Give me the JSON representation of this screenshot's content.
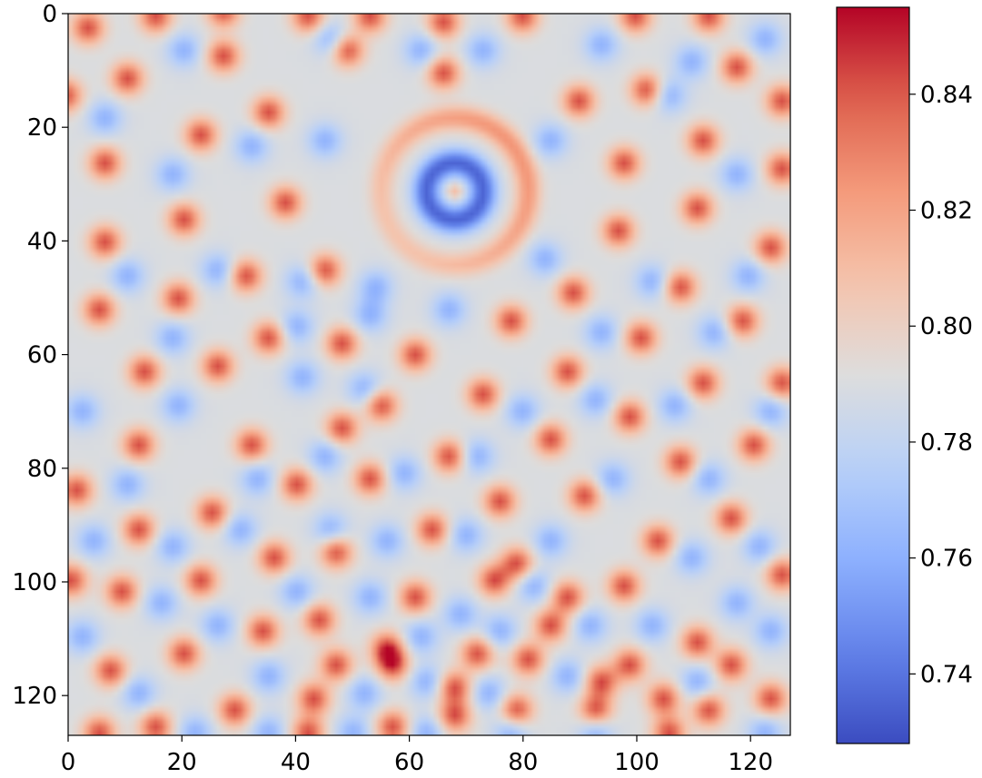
{
  "chart_data": {
    "type": "heatmap",
    "title": "",
    "xlabel": "",
    "ylabel": "",
    "grid_size": [
      128,
      128
    ],
    "xlim": [
      0,
      127
    ],
    "ylim": [
      127,
      0
    ],
    "x_ticks": [
      0,
      20,
      40,
      60,
      80,
      100,
      120
    ],
    "y_ticks": [
      0,
      20,
      40,
      60,
      80,
      100,
      120
    ],
    "colormap": "coolwarm",
    "value_range": [
      0.728,
      0.855
    ],
    "colorbar_ticks": [
      0.74,
      0.76,
      0.78,
      0.8,
      0.82,
      0.84
    ],
    "colorbar_tick_labels": [
      "0.74",
      "0.76",
      "0.78",
      "0.80",
      "0.82",
      "0.84"
    ],
    "background_value": 0.79,
    "field_note": "periodic spot/stripe pattern with a concentric ring centered near (68, 31)",
    "features": {
      "peaks": [
        [
          3,
          2
        ],
        [
          15,
          0
        ],
        [
          27,
          -1
        ],
        [
          42,
          0
        ],
        [
          53,
          0
        ],
        [
          66,
          1
        ],
        [
          80,
          0
        ],
        [
          100,
          0
        ],
        [
          113,
          0
        ],
        [
          -1,
          14
        ],
        [
          10,
          11
        ],
        [
          27,
          7
        ],
        [
          35,
          17
        ],
        [
          49,
          6
        ],
        [
          66,
          10
        ],
        [
          90,
          15
        ],
        [
          102,
          13
        ],
        [
          118,
          9
        ],
        [
          126,
          15
        ],
        [
          6,
          26
        ],
        [
          23,
          21
        ],
        [
          98,
          26
        ],
        [
          112,
          22
        ],
        [
          126,
          27
        ],
        [
          6,
          40
        ],
        [
          20,
          36
        ],
        [
          38,
          33
        ],
        [
          97,
          38
        ],
        [
          111,
          34
        ],
        [
          124,
          41
        ],
        [
          5,
          52
        ],
        [
          19,
          50
        ],
        [
          31,
          46
        ],
        [
          45,
          45
        ],
        [
          78,
          54
        ],
        [
          89,
          49
        ],
        [
          108,
          48
        ],
        [
          119,
          54
        ],
        [
          13,
          63
        ],
        [
          26,
          62
        ],
        [
          35,
          57
        ],
        [
          48,
          58
        ],
        [
          61,
          60
        ],
        [
          73,
          67
        ],
        [
          88,
          63
        ],
        [
          101,
          57
        ],
        [
          112,
          65
        ],
        [
          126,
          65
        ],
        [
          12,
          76
        ],
        [
          32,
          76
        ],
        [
          48,
          73
        ],
        [
          55,
          69
        ],
        [
          67,
          78
        ],
        [
          85,
          75
        ],
        [
          99,
          71
        ],
        [
          108,
          79
        ],
        [
          121,
          76
        ],
        [
          1,
          84
        ],
        [
          25,
          88
        ],
        [
          40,
          83
        ],
        [
          53,
          82
        ],
        [
          76,
          86
        ],
        [
          91,
          85
        ],
        [
          117,
          89
        ],
        [
          12,
          91
        ],
        [
          36,
          96
        ],
        [
          64,
          91
        ],
        [
          79,
          97
        ],
        [
          104,
          93
        ],
        [
          0,
          100
        ],
        [
          9,
          102
        ],
        [
          23,
          100
        ],
        [
          47,
          95
        ],
        [
          61,
          103
        ],
        [
          75,
          100
        ],
        [
          88,
          103
        ],
        [
          98,
          101
        ],
        [
          126,
          99
        ],
        [
          34,
          109
        ],
        [
          44,
          107
        ],
        [
          56,
          112
        ],
        [
          72,
          113
        ],
        [
          85,
          108
        ],
        [
          99,
          115
        ],
        [
          111,
          111
        ],
        [
          7,
          116
        ],
        [
          20,
          113
        ],
        [
          47,
          115
        ],
        [
          57,
          115
        ],
        [
          68,
          119
        ],
        [
          81,
          114
        ],
        [
          94,
          118
        ],
        [
          105,
          121
        ],
        [
          117,
          115
        ],
        [
          29,
          123
        ],
        [
          43,
          121
        ],
        [
          57,
          126
        ],
        [
          68,
          124
        ],
        [
          79,
          123
        ],
        [
          93,
          123
        ],
        [
          113,
          123
        ],
        [
          124,
          121
        ],
        [
          5,
          127
        ],
        [
          15,
          126
        ],
        [
          42,
          127
        ],
        [
          106,
          127
        ]
      ],
      "troughs": [
        [
          6,
          18
        ],
        [
          20,
          6
        ],
        [
          46,
          4
        ],
        [
          62,
          6
        ],
        [
          73,
          6
        ],
        [
          94,
          5
        ],
        [
          110,
          8
        ],
        [
          123,
          4
        ],
        [
          18,
          28
        ],
        [
          32,
          23
        ],
        [
          45,
          22
        ],
        [
          85,
          22
        ],
        [
          106,
          14
        ],
        [
          118,
          28
        ],
        [
          10,
          46
        ],
        [
          26,
          45
        ],
        [
          41,
          47
        ],
        [
          54,
          48
        ],
        [
          84,
          43
        ],
        [
          103,
          47
        ],
        [
          120,
          46
        ],
        [
          18,
          57
        ],
        [
          40,
          55
        ],
        [
          53,
          53
        ],
        [
          67,
          52
        ],
        [
          94,
          56
        ],
        [
          114,
          56
        ],
        [
          2,
          70
        ],
        [
          19,
          69
        ],
        [
          41,
          64
        ],
        [
          52,
          66
        ],
        [
          80,
          70
        ],
        [
          93,
          68
        ],
        [
          107,
          69
        ],
        [
          124,
          70
        ],
        [
          10,
          83
        ],
        [
          33,
          82
        ],
        [
          45,
          78
        ],
        [
          59,
          81
        ],
        [
          72,
          78
        ],
        [
          96,
          82
        ],
        [
          113,
          82
        ],
        [
          4,
          93
        ],
        [
          18,
          94
        ],
        [
          30,
          91
        ],
        [
          46,
          91
        ],
        [
          56,
          93
        ],
        [
          70,
          92
        ],
        [
          85,
          93
        ],
        [
          110,
          96
        ],
        [
          122,
          94
        ],
        [
          16,
          104
        ],
        [
          40,
          102
        ],
        [
          53,
          103
        ],
        [
          69,
          106
        ],
        [
          82,
          101
        ],
        [
          92,
          108
        ],
        [
          118,
          104
        ],
        [
          2,
          110
        ],
        [
          26,
          108
        ],
        [
          62,
          110
        ],
        [
          76,
          109
        ],
        [
          103,
          108
        ],
        [
          124,
          109
        ],
        [
          12,
          120
        ],
        [
          35,
          117
        ],
        [
          52,
          120
        ],
        [
          63,
          118
        ],
        [
          74,
          120
        ],
        [
          88,
          117
        ],
        [
          111,
          118
        ],
        [
          22,
          127
        ],
        [
          35,
          127
        ],
        [
          50,
          127
        ],
        [
          63,
          127
        ],
        [
          78,
          127
        ],
        [
          93,
          127
        ],
        [
          123,
          127
        ]
      ]
    }
  }
}
